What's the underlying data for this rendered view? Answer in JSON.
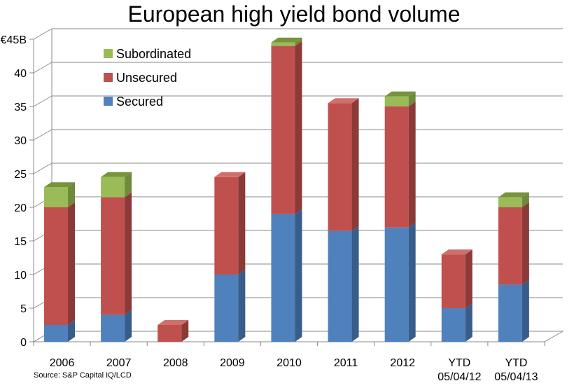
{
  "chart_data": {
    "type": "bar",
    "stacked": true,
    "three_d": true,
    "title": "European high yield bond volume",
    "source": "Source: S&P Capital IQ/LCD",
    "categories": [
      [
        "2006"
      ],
      [
        "2007"
      ],
      [
        "2008"
      ],
      [
        "2009"
      ],
      [
        "2010"
      ],
      [
        "2011"
      ],
      [
        "2012"
      ],
      [
        "YTD",
        "05/04/12"
      ],
      [
        "YTD",
        "05/04/13"
      ]
    ],
    "y_ticks": [
      "0",
      "5",
      "10",
      "15",
      "20",
      "25",
      "30",
      "35",
      "40",
      "€45B"
    ],
    "y_tick_values": [
      0,
      5,
      10,
      15,
      20,
      25,
      30,
      35,
      40,
      45
    ],
    "ylim": [
      0,
      45
    ],
    "grid": true,
    "legend_position": "top-left",
    "series": [
      {
        "name": "Secured",
        "color": "#4f81bd",
        "side": "#385d8a",
        "top": "#6a96cc",
        "values": [
          2.5,
          4,
          0,
          10,
          19,
          16.5,
          17,
          5,
          8.5
        ]
      },
      {
        "name": "Unsecured",
        "color": "#c0504d",
        "side": "#8c3a38",
        "top": "#d0706d",
        "values": [
          17.5,
          17.5,
          2.5,
          14.5,
          25,
          19,
          18,
          8,
          11.5
        ]
      },
      {
        "name": "Subordinated",
        "color": "#9bbb59",
        "side": "#6f8a3d",
        "top": "#77933c",
        "values": [
          3,
          3,
          0,
          0,
          0.5,
          0,
          1.5,
          0,
          1.5
        ]
      }
    ],
    "legend_order": [
      "Subordinated",
      "Unsecured",
      "Secured"
    ]
  }
}
